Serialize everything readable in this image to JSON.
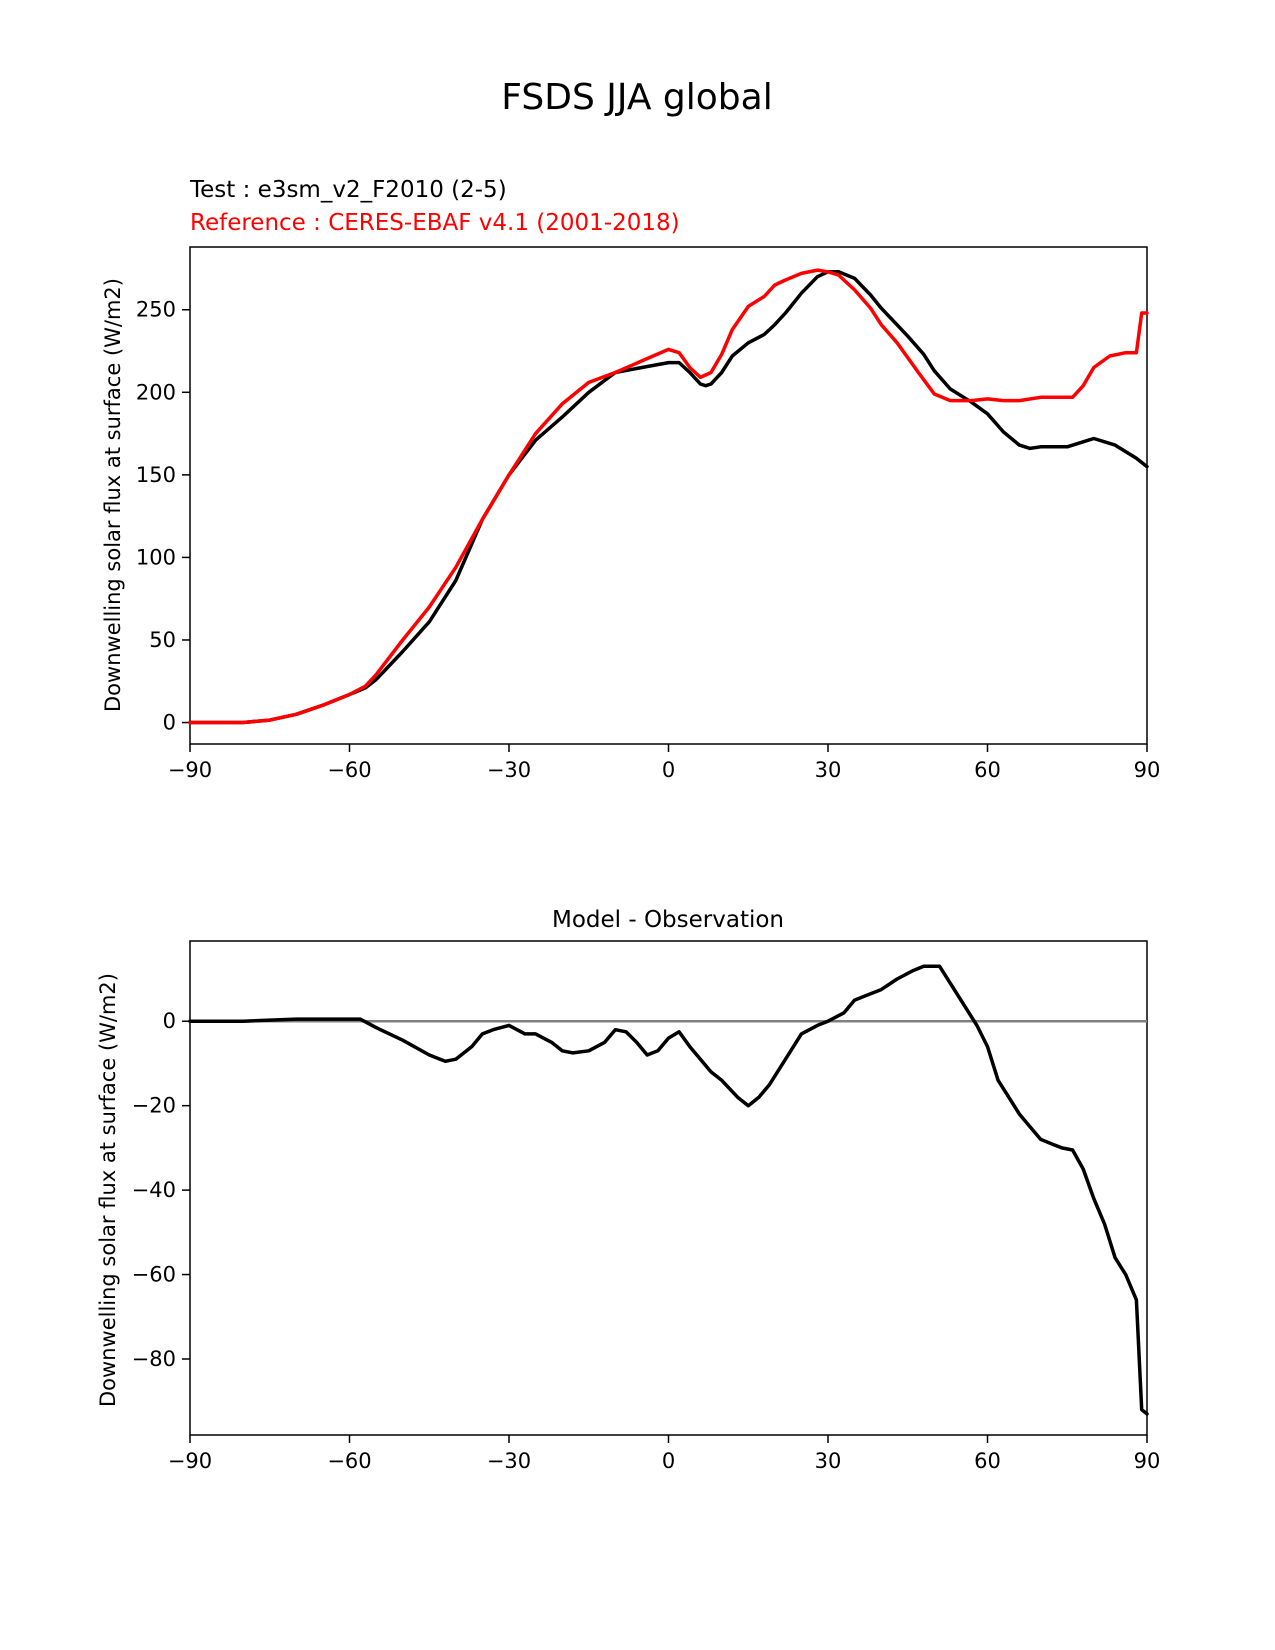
{
  "figure": {
    "title": "FSDS JJA global",
    "colors": {
      "test": "#000000",
      "reference": "#ff0000",
      "zero_line": "#808080"
    }
  },
  "chart_data": [
    {
      "type": "line",
      "title": "",
      "test_label": "Test : e3sm_v2_F2010 (2-5)",
      "reference_label": "Reference : CERES-EBAF v4.1 (2001-2018)",
      "xlabel": "",
      "ylabel": "Downwelling solar flux at surface (W/m2)",
      "xlim": [
        -90,
        90
      ],
      "ylim": [
        -13,
        288
      ],
      "xticks": [
        "−90",
        "−60",
        "−30",
        "0",
        "30",
        "60",
        "90"
      ],
      "yticks": [
        "0",
        "50",
        "100",
        "150",
        "200",
        "250"
      ],
      "series": [
        {
          "name": "Test",
          "x": [
            -90,
            -80,
            -75,
            -70,
            -65,
            -60,
            -57,
            -55,
            -50,
            -45,
            -40,
            -35,
            -30,
            -25,
            -20,
            -15,
            -10,
            -5,
            0,
            2,
            4,
            6,
            7,
            8,
            10,
            12,
            15,
            18,
            20,
            22,
            25,
            28,
            30,
            32,
            35,
            38,
            40,
            45,
            48,
            50,
            53,
            57,
            60,
            63,
            66,
            68,
            70,
            75,
            78,
            80,
            84,
            88,
            90
          ],
          "values": [
            0,
            0,
            1.5,
            5,
            10.5,
            17,
            21,
            26,
            43,
            61,
            86,
            123,
            150,
            171,
            185,
            200,
            212,
            215,
            218,
            218,
            212,
            205,
            204,
            205,
            212,
            222,
            230,
            235,
            241,
            248,
            260,
            270,
            273,
            273,
            269,
            259,
            251,
            234,
            223,
            213,
            202,
            194,
            187,
            176,
            168,
            166,
            167,
            167,
            170,
            172,
            168,
            160,
            155
          ]
        },
        {
          "name": "Reference",
          "x": [
            -90,
            -80,
            -75,
            -70,
            -65,
            -60,
            -57,
            -55,
            -50,
            -45,
            -40,
            -35,
            -30,
            -25,
            -20,
            -15,
            -10,
            -5,
            0,
            2,
            4,
            6,
            8,
            10,
            12,
            15,
            18,
            20,
            22,
            25,
            28,
            30,
            32,
            35,
            38,
            40,
            43,
            47,
            50,
            53,
            57,
            60,
            63,
            66,
            70,
            73,
            76,
            78,
            80,
            83,
            86,
            88,
            89,
            90
          ],
          "values": [
            0,
            0,
            1.5,
            5,
            10.5,
            17,
            22,
            29,
            50,
            70,
            94,
            123,
            150,
            175,
            193,
            206,
            212,
            219,
            226,
            224,
            215,
            209,
            212,
            223,
            238,
            252,
            258,
            265,
            268,
            272,
            274,
            273,
            271,
            262,
            251,
            241,
            230,
            212,
            199,
            195,
            195,
            196,
            195,
            195,
            197,
            197,
            197,
            204,
            215,
            222,
            224,
            224,
            248,
            248
          ]
        }
      ]
    },
    {
      "type": "line",
      "title": "Model - Observation",
      "xlabel": "",
      "ylabel": "Downwelling solar flux at surface (W/m2)",
      "xlim": [
        -90,
        90
      ],
      "ylim": [
        -98,
        19
      ],
      "xticks": [
        "−90",
        "−60",
        "−30",
        "0",
        "30",
        "60",
        "90"
      ],
      "yticks": [
        "−80",
        "−60",
        "−40",
        "−20",
        "0"
      ],
      "zero_line": true,
      "series": [
        {
          "name": "Model - Observation",
          "x": [
            -90,
            -80,
            -70,
            -65,
            -60,
            -58,
            -55,
            -50,
            -45,
            -42,
            -40,
            -37,
            -35,
            -33,
            -30,
            -27,
            -25,
            -22,
            -20,
            -18,
            -15,
            -12,
            -10,
            -8,
            -6,
            -4,
            -2,
            0,
            2,
            4,
            6,
            8,
            10,
            13,
            15,
            17,
            19,
            22,
            25,
            28,
            30,
            33,
            35,
            37,
            40,
            43,
            46,
            48,
            51,
            55,
            58,
            60,
            62,
            64,
            66,
            68,
            70,
            72,
            74,
            76,
            78,
            80,
            82,
            84,
            86,
            88,
            89,
            90
          ],
          "values": [
            0,
            0,
            0.5,
            0.5,
            0.5,
            0.5,
            -1.5,
            -4.5,
            -8,
            -9.5,
            -9,
            -6,
            -3,
            -2,
            -1,
            -3,
            -3,
            -5,
            -7,
            -7.5,
            -7,
            -5,
            -2,
            -2.5,
            -5,
            -8,
            -7,
            -4,
            -2.5,
            -6,
            -9,
            -12,
            -14,
            -18,
            -20,
            -18,
            -15,
            -9,
            -3,
            -1,
            0,
            2,
            5,
            6,
            7.5,
            10,
            12,
            13,
            13,
            5,
            -1,
            -6,
            -14,
            -18,
            -22,
            -25,
            -28,
            -29,
            -30,
            -30.5,
            -35,
            -42,
            -48,
            -56,
            -60,
            -66,
            -92,
            -93
          ]
        }
      ]
    }
  ]
}
